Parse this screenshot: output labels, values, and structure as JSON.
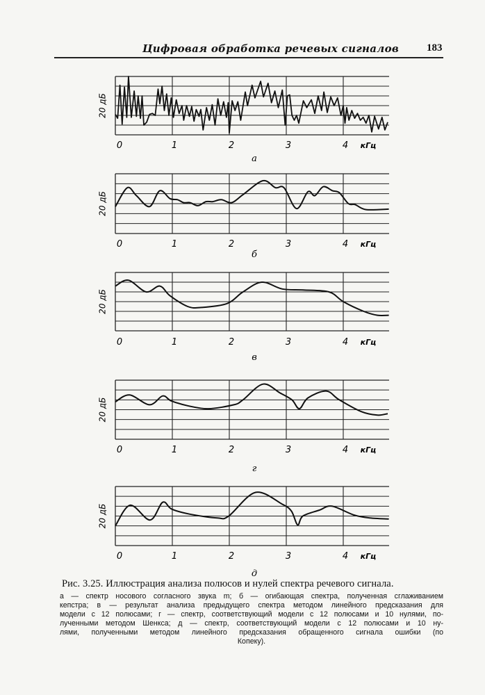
{
  "header": {
    "running_title": "Цифровая обработка речевых сигналов",
    "page_number": "183"
  },
  "caption": {
    "title": "Рис. 3.25. Иллюстрация анализа полюсов и нулей спектра речевого сигнала.",
    "lines": [
      "а — спектр носового согласного звука m; б — огибающая спектра, полученная сглаживанием",
      "кепстра; в — результат анализа предыдущего спектра методом линейного предсказания для",
      "модели с 12 полюсами; г — спектр, соответствующий модели с 12 полюсами и 10 нулями, по-",
      "лученными методом Шенкса; д — спектр, соответствующий модели с 12 полюсами и 10 ну-",
      "лями, полученными методом линейного предсказания обращенного сигнала ошибки (по",
      "Копеку)."
    ]
  },
  "chart_data": [
    {
      "type": "line",
      "panel_label": "а",
      "ylabel": "20 дБ",
      "x_ticks": [
        "0",
        "1",
        "2",
        "3",
        "4"
      ],
      "x_unit": "кГц",
      "xlim": [
        0,
        4.8
      ],
      "ylim_grid_divisions": [
        0,
        6
      ],
      "grid": true,
      "x": [
        0,
        0.04,
        0.08,
        0.12,
        0.16,
        0.2,
        0.23,
        0.28,
        0.33,
        0.37,
        0.4,
        0.44,
        0.47,
        0.5,
        0.55,
        0.6,
        0.65,
        0.7,
        0.75,
        0.78,
        0.82,
        0.86,
        0.9,
        0.94,
        0.98,
        1.02,
        1.07,
        1.12,
        1.17,
        1.2,
        1.25,
        1.3,
        1.34,
        1.38,
        1.42,
        1.47,
        1.5,
        1.54,
        1.6,
        1.65,
        1.7,
        1.75,
        1.8,
        1.85,
        1.9,
        1.95,
        1.98,
        2.0,
        2.05,
        2.1,
        2.15,
        2.2,
        2.28,
        2.32,
        2.4,
        2.45,
        2.55,
        2.6,
        2.68,
        2.74,
        2.8,
        2.86,
        2.93,
        2.98,
        3.02,
        3.06,
        3.1,
        3.14,
        3.18,
        3.22,
        3.3,
        3.36,
        3.44,
        3.5,
        3.56,
        3.62,
        3.66,
        3.72,
        3.78,
        3.84,
        3.9,
        3.96,
        4.0,
        4.03,
        4.06,
        4.1,
        4.15,
        4.2,
        4.25,
        4.3,
        4.35,
        4.4,
        4.45,
        4.5,
        4.55,
        4.62,
        4.68,
        4.73,
        4.78
      ],
      "y": [
        2.1,
        1.7,
        5.1,
        1.1,
        4.9,
        1.8,
        6.0,
        1.8,
        4.5,
        1.9,
        4.0,
        1.7,
        4.0,
        1.0,
        1.3,
        2.1,
        2.2,
        2.0,
        4.7,
        3.2,
        5.0,
        2.5,
        4.2,
        2.0,
        3.8,
        1.8,
        3.6,
        2.2,
        3.0,
        1.5,
        3.0,
        1.9,
        2.9,
        1.4,
        2.6,
        1.9,
        2.6,
        0.5,
        2.8,
        1.5,
        3.1,
        1.0,
        3.7,
        2.0,
        3.4,
        1.8,
        3.3,
        0.2,
        3.5,
        2.5,
        3.4,
        1.5,
        4.4,
        3.0,
        5.1,
        3.8,
        5.5,
        3.9,
        5.3,
        3.3,
        4.5,
        2.8,
        4.6,
        1.0,
        4.0,
        4.1,
        2.0,
        1.5,
        2.0,
        1.2,
        3.5,
        2.8,
        3.6,
        2.2,
        4.0,
        2.5,
        4.4,
        2.3,
        3.9,
        3.0,
        3.8,
        2.0,
        3.0,
        1.2,
        2.8,
        1.5,
        2.5,
        1.7,
        2.2,
        1.5,
        1.8,
        1.2,
        2.0,
        0.3,
        1.9,
        0.6,
        1.8,
        0.5,
        1.3
      ]
    },
    {
      "type": "line",
      "panel_label": "б",
      "ylabel": "20 дБ",
      "x_ticks": [
        "0",
        "1",
        "2",
        "3",
        "4"
      ],
      "x_unit": "кГц",
      "xlim": [
        0,
        4.8
      ],
      "ylim_grid_divisions": [
        0,
        6
      ],
      "grid": true,
      "x": [
        0,
        0.21,
        0.37,
        0.6,
        0.78,
        0.96,
        1.09,
        1.2,
        1.31,
        1.45,
        1.59,
        1.71,
        1.86,
        2.04,
        2.24,
        2.59,
        2.81,
        2.96,
        3.18,
        3.38,
        3.5,
        3.65,
        3.81,
        3.93,
        4.09,
        4.21,
        4.4,
        4.8
      ],
      "y": [
        2.7,
        4.6,
        3.8,
        2.7,
        4.3,
        3.5,
        3.4,
        3.1,
        3.1,
        2.8,
        3.2,
        3.2,
        3.4,
        3.1,
        3.9,
        5.3,
        4.6,
        4.6,
        2.5,
        4.2,
        3.8,
        4.7,
        4.3,
        4.1,
        3.0,
        2.9,
        2.4,
        2.45
      ]
    },
    {
      "type": "line",
      "panel_label": "в",
      "ylabel": "20 дБ",
      "x_ticks": [
        "0",
        "1",
        "2",
        "3",
        "4"
      ],
      "x_unit": "кГц",
      "xlim": [
        0,
        4.8
      ],
      "ylim_grid_divisions": [
        0,
        6
      ],
      "grid": true,
      "x": [
        0,
        0.23,
        0.54,
        0.78,
        0.96,
        1.27,
        1.51,
        1.96,
        2.24,
        2.57,
        2.93,
        3.3,
        3.75,
        4.0,
        4.36,
        4.6,
        4.8
      ],
      "y": [
        4.6,
        5.2,
        4.0,
        4.6,
        3.6,
        2.5,
        2.4,
        2.8,
        4.0,
        5.0,
        4.3,
        4.2,
        4.0,
        3.0,
        2.0,
        1.6,
        1.6
      ]
    },
    {
      "type": "line",
      "panel_label": "г",
      "ylabel": "20 дБ",
      "x_ticks": [
        "0",
        "1",
        "2",
        "3",
        "4"
      ],
      "x_unit": "кГц",
      "xlim": [
        0,
        4.8
      ],
      "ylim_grid_divisions": [
        0,
        6
      ],
      "grid": true,
      "x": [
        0,
        0.25,
        0.6,
        0.83,
        0.98,
        1.27,
        1.63,
        2.08,
        2.24,
        2.59,
        2.89,
        3.1,
        3.23,
        3.38,
        3.7,
        3.93,
        4.32,
        4.6,
        4.78
      ],
      "y": [
        3.8,
        4.5,
        3.5,
        4.4,
        3.9,
        3.4,
        3.1,
        3.5,
        4.0,
        5.6,
        4.7,
        4.0,
        3.1,
        4.2,
        4.9,
        4.0,
        2.8,
        2.45,
        2.6
      ]
    },
    {
      "type": "line",
      "panel_label": "д",
      "ylabel": "20 дБ",
      "x_ticks": [
        "0",
        "1",
        "2",
        "3",
        "4"
      ],
      "x_unit": "кГц",
      "xlim": [
        0,
        4.8
      ],
      "ylim_grid_divisions": [
        0,
        6
      ],
      "grid": true,
      "x": [
        0,
        0.26,
        0.61,
        0.83,
        0.99,
        1.3,
        1.79,
        1.99,
        2.46,
        2.93,
        3.09,
        3.2,
        3.29,
        3.58,
        3.8,
        4.19,
        4.47,
        4.8
      ],
      "y": [
        2.0,
        4.1,
        2.6,
        4.4,
        3.7,
        3.2,
        2.8,
        3.0,
        5.4,
        4.2,
        3.5,
        2.1,
        3.0,
        3.6,
        4.0,
        3.1,
        2.8,
        2.7
      ]
    }
  ]
}
